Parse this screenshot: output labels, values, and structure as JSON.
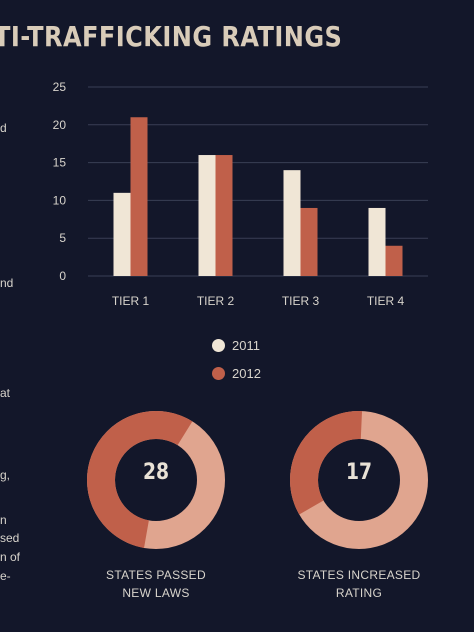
{
  "page": {
    "title": "TI-TRAFFICKING RATINGS"
  },
  "side_fragments": [
    "d",
    "nd",
    "at",
    "g,",
    "n",
    "sed",
    "n of",
    "e-"
  ],
  "colors": {
    "background": "#13172a",
    "series_2011": "#f0e6d6",
    "series_2012": "#c0604a",
    "donut_dark": "#c0604a",
    "donut_light": "#e0a58f",
    "grid": "#3a3f55"
  },
  "chart_data": [
    {
      "type": "bar",
      "categories": [
        "TIER 1",
        "TIER 2",
        "TIER 3",
        "TIER 4"
      ],
      "series": [
        {
          "name": "2011",
          "values": [
            11,
            16,
            14,
            9
          ]
        },
        {
          "name": "2012",
          "values": [
            21,
            16,
            9,
            4
          ]
        }
      ],
      "ylim": [
        0,
        25
      ],
      "yticks": [
        0,
        5,
        10,
        15,
        20,
        25
      ],
      "grid": true,
      "legend": "bottom"
    },
    {
      "type": "pie",
      "variant": "donut",
      "value_label": "28",
      "caption": [
        "STATES PASSED",
        "NEW LAWS"
      ],
      "share_percent": 56
    },
    {
      "type": "pie",
      "variant": "donut",
      "value_label": "17",
      "caption": [
        "STATES INCREASED",
        "RATING"
      ],
      "share_percent": 34
    }
  ]
}
